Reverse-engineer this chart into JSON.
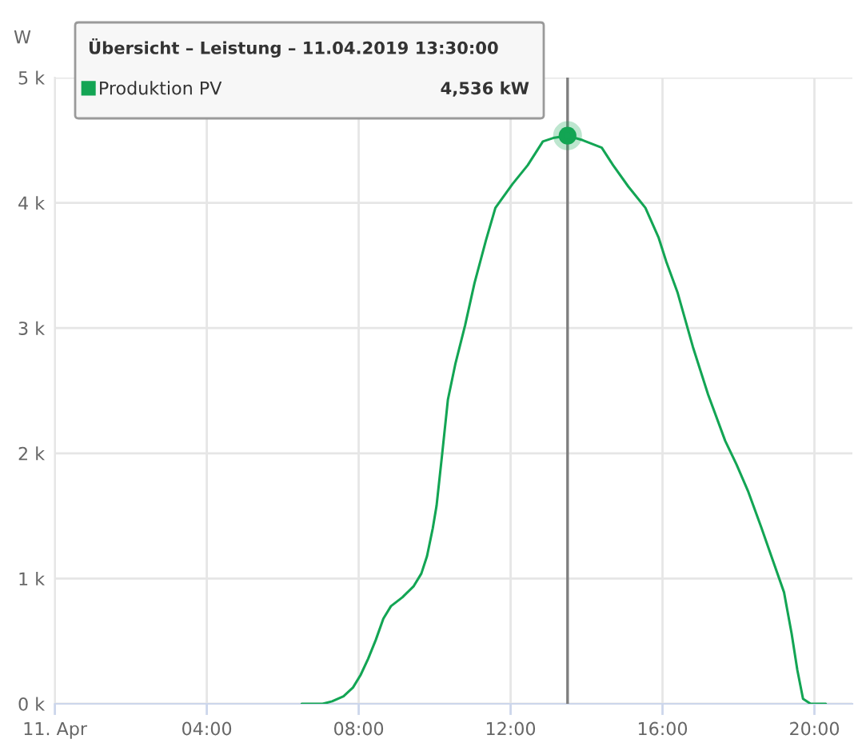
{
  "chart_data": {
    "type": "line",
    "ylabel": "W",
    "annotations": [
      "Übersicht – Leistung – 11.04.2019 13:30:00",
      "4,536 kW"
    ],
    "xlim": [
      0,
      21
    ],
    "xticks": [
      {
        "value": 0,
        "label": "11. Apr"
      },
      {
        "value": 4,
        "label": "04:00"
      },
      {
        "value": 8,
        "label": "08:00"
      },
      {
        "value": 12,
        "label": "12:00"
      },
      {
        "value": 16,
        "label": "16:00"
      },
      {
        "value": 20,
        "label": "20:00"
      }
    ],
    "ylim": [
      0,
      5000
    ],
    "yticks": [
      {
        "value": 0,
        "label": "0 k"
      },
      {
        "value": 1000,
        "label": "1 k"
      },
      {
        "value": 2000,
        "label": "2 k"
      },
      {
        "value": 3000,
        "label": "3 k"
      },
      {
        "value": 4000,
        "label": "4 k"
      },
      {
        "value": 5000,
        "label": "5 k"
      }
    ],
    "grid": true,
    "legend": "top left",
    "marker": "none",
    "line_style": "solid",
    "ref_lines": [
      {
        "axis": "x",
        "value": 13.5,
        "color": "#7f7f7f"
      }
    ],
    "series": [
      {
        "name": "Produktion PV",
        "color": "#13a554",
        "x": [
          6.5,
          7.05,
          7.3,
          7.6,
          7.85,
          8.05,
          8.25,
          8.45,
          8.65,
          8.85,
          9.15,
          9.45,
          9.65,
          9.8,
          9.95,
          10.05,
          10.2,
          10.35,
          10.55,
          10.8,
          11.05,
          11.35,
          11.6,
          12.05,
          12.45,
          12.85,
          13.15,
          13.5,
          13.9,
          14.4,
          14.7,
          15.1,
          15.55,
          15.9,
          16.1,
          16.4,
          16.8,
          17.2,
          17.65,
          17.95,
          18.25,
          18.6,
          18.9,
          19.2,
          19.4,
          19.55,
          19.7,
          19.9,
          20.3
        ],
        "values": [
          0,
          0,
          20,
          60,
          130,
          230,
          360,
          510,
          680,
          780,
          850,
          940,
          1040,
          1180,
          1400,
          1580,
          2000,
          2430,
          2720,
          3020,
          3360,
          3700,
          3960,
          4150,
          4300,
          4490,
          4520,
          4536,
          4500,
          4440,
          4300,
          4130,
          3960,
          3720,
          3530,
          3280,
          2850,
          2470,
          2100,
          1910,
          1700,
          1410,
          1150,
          890,
          560,
          270,
          40,
          0,
          0
        ]
      },
      {
        "type": "scatter",
        "color": "#13a554",
        "marker": "circle",
        "x": [
          13.5
        ],
        "values": [
          4536
        ]
      }
    ]
  }
}
